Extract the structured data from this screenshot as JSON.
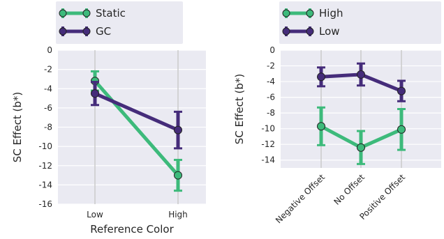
{
  "chart_data": [
    {
      "type": "line",
      "title": "",
      "xlabel": "Reference Color",
      "ylabel": "SC Effect (b*)",
      "categories": [
        "Low",
        "High"
      ],
      "ylim": [
        -16,
        0
      ],
      "yticks": [
        0,
        -2,
        -4,
        -6,
        -8,
        -10,
        -12,
        -14,
        -16
      ],
      "grid": true,
      "legend_position": "top-left",
      "error_bars": true,
      "series": [
        {
          "name": "Static",
          "color": "#3dba7b",
          "values": [
            -3.2,
            -13.0
          ],
          "error": [
            1.0,
            1.6
          ]
        },
        {
          "name": "GC",
          "color": "#452c7a",
          "values": [
            -4.5,
            -8.3
          ],
          "error": [
            1.2,
            1.9
          ]
        }
      ]
    },
    {
      "type": "line",
      "title": "",
      "xlabel": "",
      "ylabel": "SC Effect (b*)",
      "categories": [
        "Negative Offset",
        "No Offset",
        "Positive Offset"
      ],
      "ylim": [
        -15,
        0
      ],
      "yticks": [
        0,
        -2,
        -4,
        -6,
        -8,
        -10,
        -12,
        -14
      ],
      "grid": true,
      "legend_position": "top-left",
      "error_bars": true,
      "series": [
        {
          "name": "High",
          "color": "#3dba7b",
          "values": [
            -9.7,
            -12.4,
            -10.1
          ],
          "error": [
            2.4,
            2.1,
            2.6
          ]
        },
        {
          "name": "Low",
          "color": "#452c7a",
          "values": [
            -3.4,
            -3.1,
            -5.2
          ],
          "error": [
            1.2,
            1.4,
            1.3
          ]
        }
      ]
    }
  ]
}
